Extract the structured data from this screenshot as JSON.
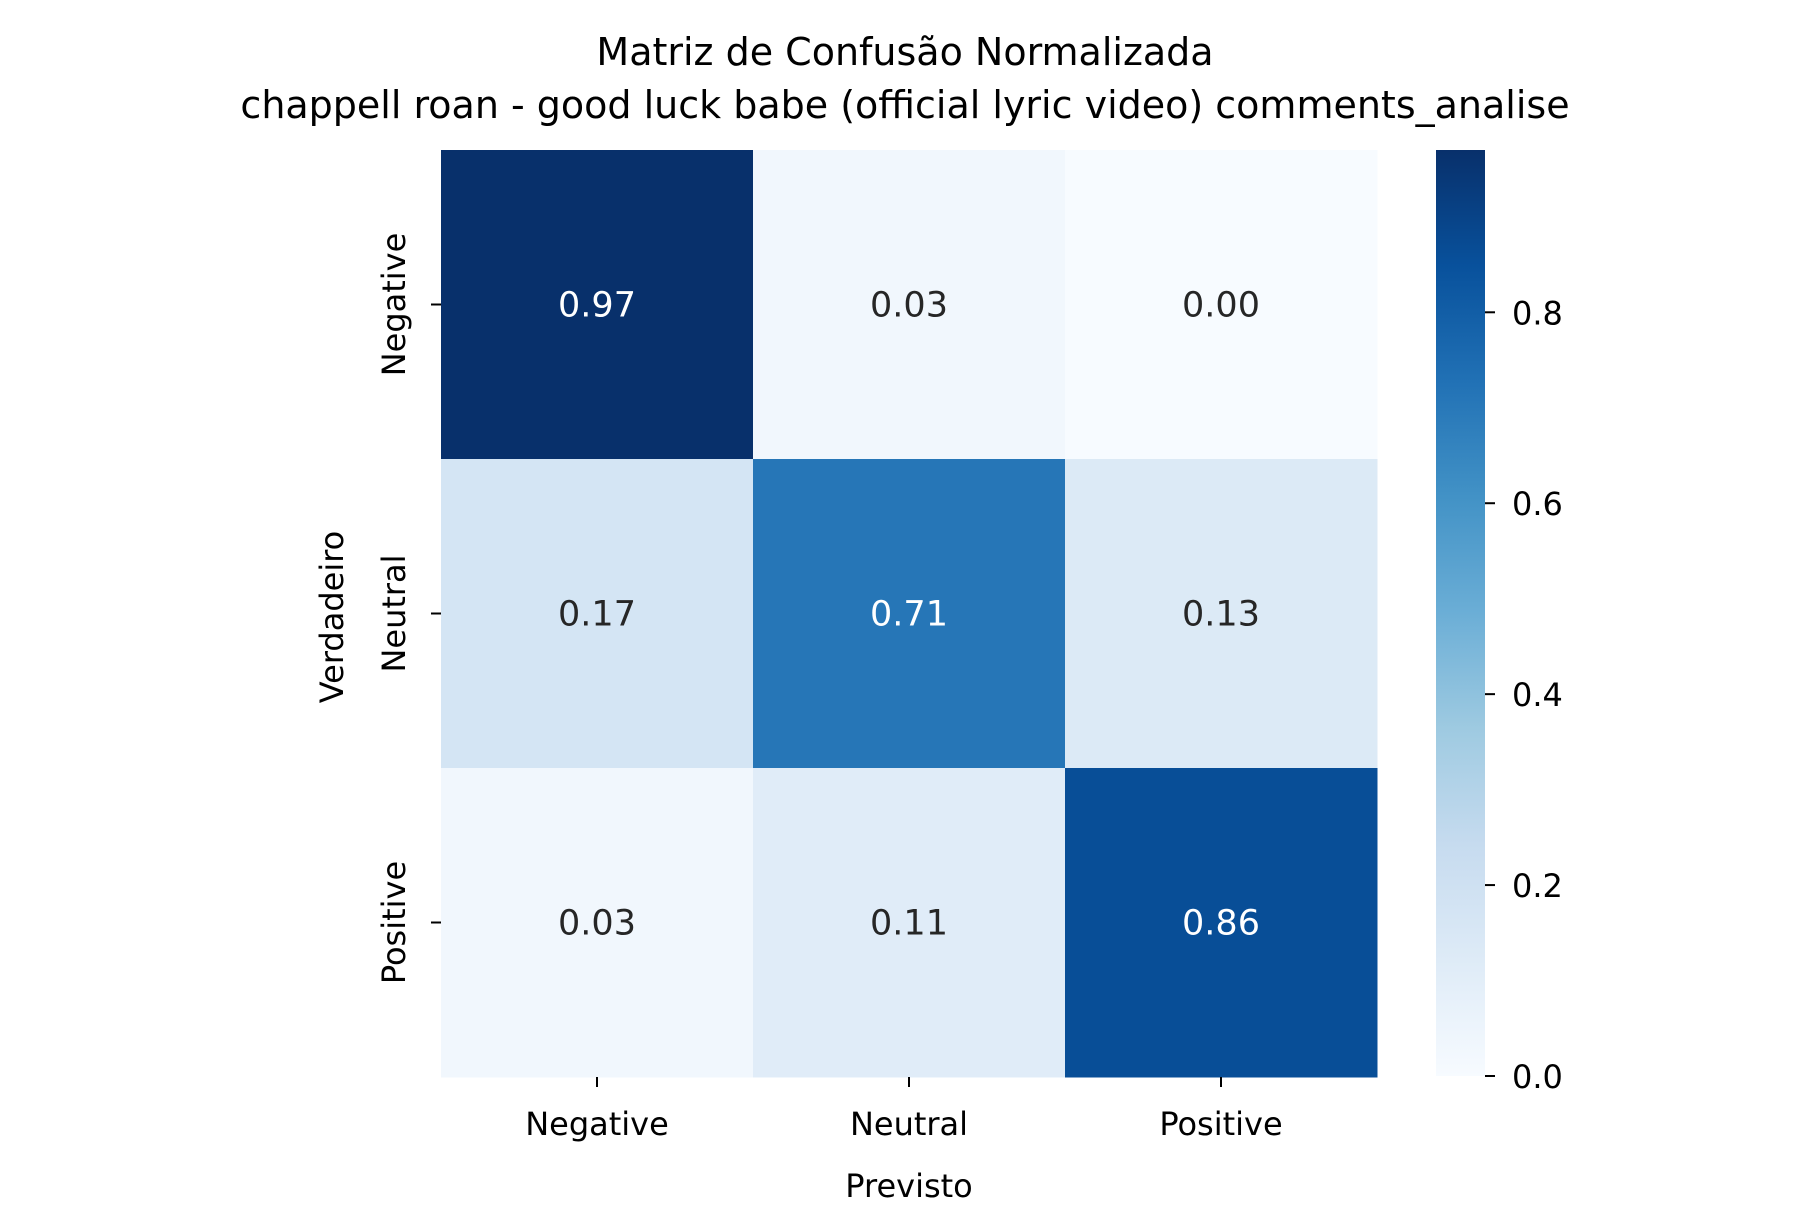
{
  "chart_data": {
    "type": "heatmap",
    "title": "Matriz de Confusão Normalizada",
    "subtitle": "chappell roan - good luck babe (official lyric video) comments_analise",
    "xlabel": "Previsto",
    "ylabel": "Verdadeiro",
    "x_categories": [
      "Negative",
      "Neutral",
      "Positive"
    ],
    "y_categories": [
      "Negative",
      "Neutral",
      "Positive"
    ],
    "values": [
      [
        0.97,
        0.03,
        0.0
      ],
      [
        0.17,
        0.71,
        0.13
      ],
      [
        0.03,
        0.11,
        0.86
      ]
    ],
    "colormap": "Blues",
    "colorbar": {
      "min": 0.0,
      "max": 0.97,
      "ticks": [
        0.0,
        0.2,
        0.4,
        0.6,
        0.8
      ],
      "tick_labels": [
        "0.0",
        "0.2",
        "0.4",
        "0.6",
        "0.8"
      ]
    },
    "annotation_colors": {
      "light": "#ffffff",
      "dark": "#262626"
    },
    "grid": false
  }
}
